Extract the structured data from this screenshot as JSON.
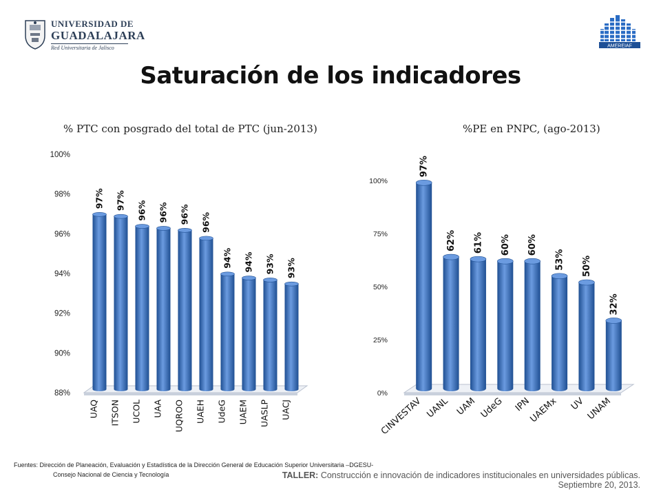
{
  "header": {
    "logo_text_line1": "Universidad de",
    "logo_text_line2": "Guadalajara",
    "logo_text_line3": "Red Universitaria de Jalisco",
    "logo_right_text": "AMEREIAF"
  },
  "title": "Saturación de los indicadores",
  "colors": {
    "bar": "#3d74bf",
    "bar_dark": "#1f4f92",
    "bar_light": "#6b9be0",
    "floor": "#eef1f6"
  },
  "chart_data": [
    {
      "type": "bar",
      "title": "% PTC con posgrado del total de PTC (jun-2013)",
      "categories": [
        "UAQ",
        "ITSON",
        "UCOL",
        "UAA",
        "UQROO",
        "UAEH",
        "UdeG",
        "UAEM",
        "UASLP",
        "UACJ"
      ],
      "values": [
        96.8,
        96.7,
        96.2,
        96.1,
        96.0,
        95.6,
        93.8,
        93.6,
        93.5,
        93.3
      ],
      "data_labels": [
        "97%",
        "97%",
        "96%",
        "96%",
        "96%",
        "96%",
        "94%",
        "94%",
        "93%",
        "93%"
      ],
      "ylim": [
        88,
        100
      ],
      "yticks": [
        "88%",
        "90%",
        "92%",
        "94%",
        "96%",
        "98%",
        "100%"
      ],
      "grid": false
    },
    {
      "type": "bar",
      "title": "%PE en PNPC, (ago-2013)",
      "categories": [
        "CINVESTAV",
        "UANL",
        "UAM",
        "UdeG",
        "IPN",
        "UAEMx",
        "UV",
        "UNAM"
      ],
      "values": [
        97,
        62,
        61,
        60,
        60,
        53,
        50,
        32
      ],
      "data_labels": [
        "97%",
        "62%",
        "61%",
        "60%",
        "60%",
        "53%",
        "50%",
        "32%"
      ],
      "ylim": [
        0,
        100
      ],
      "yticks": [
        "0%",
        "25%",
        "50%",
        "75%",
        "100%"
      ],
      "grid": false
    }
  ],
  "footer": {
    "sources_line1": "Fuentes:  Dirección de Planeación, Evaluación y Estadística de la Dirección General de Educación Superior Universitaria –DGESU-",
    "sources_line2": "Consejo Nacional de Ciencia y Tecnología",
    "taller_label": "TALLER:",
    "taller_text": " Construcción e innovación de indicadores institucionales en universidades públicas.",
    "date": "Septiembre 20, 2013."
  }
}
